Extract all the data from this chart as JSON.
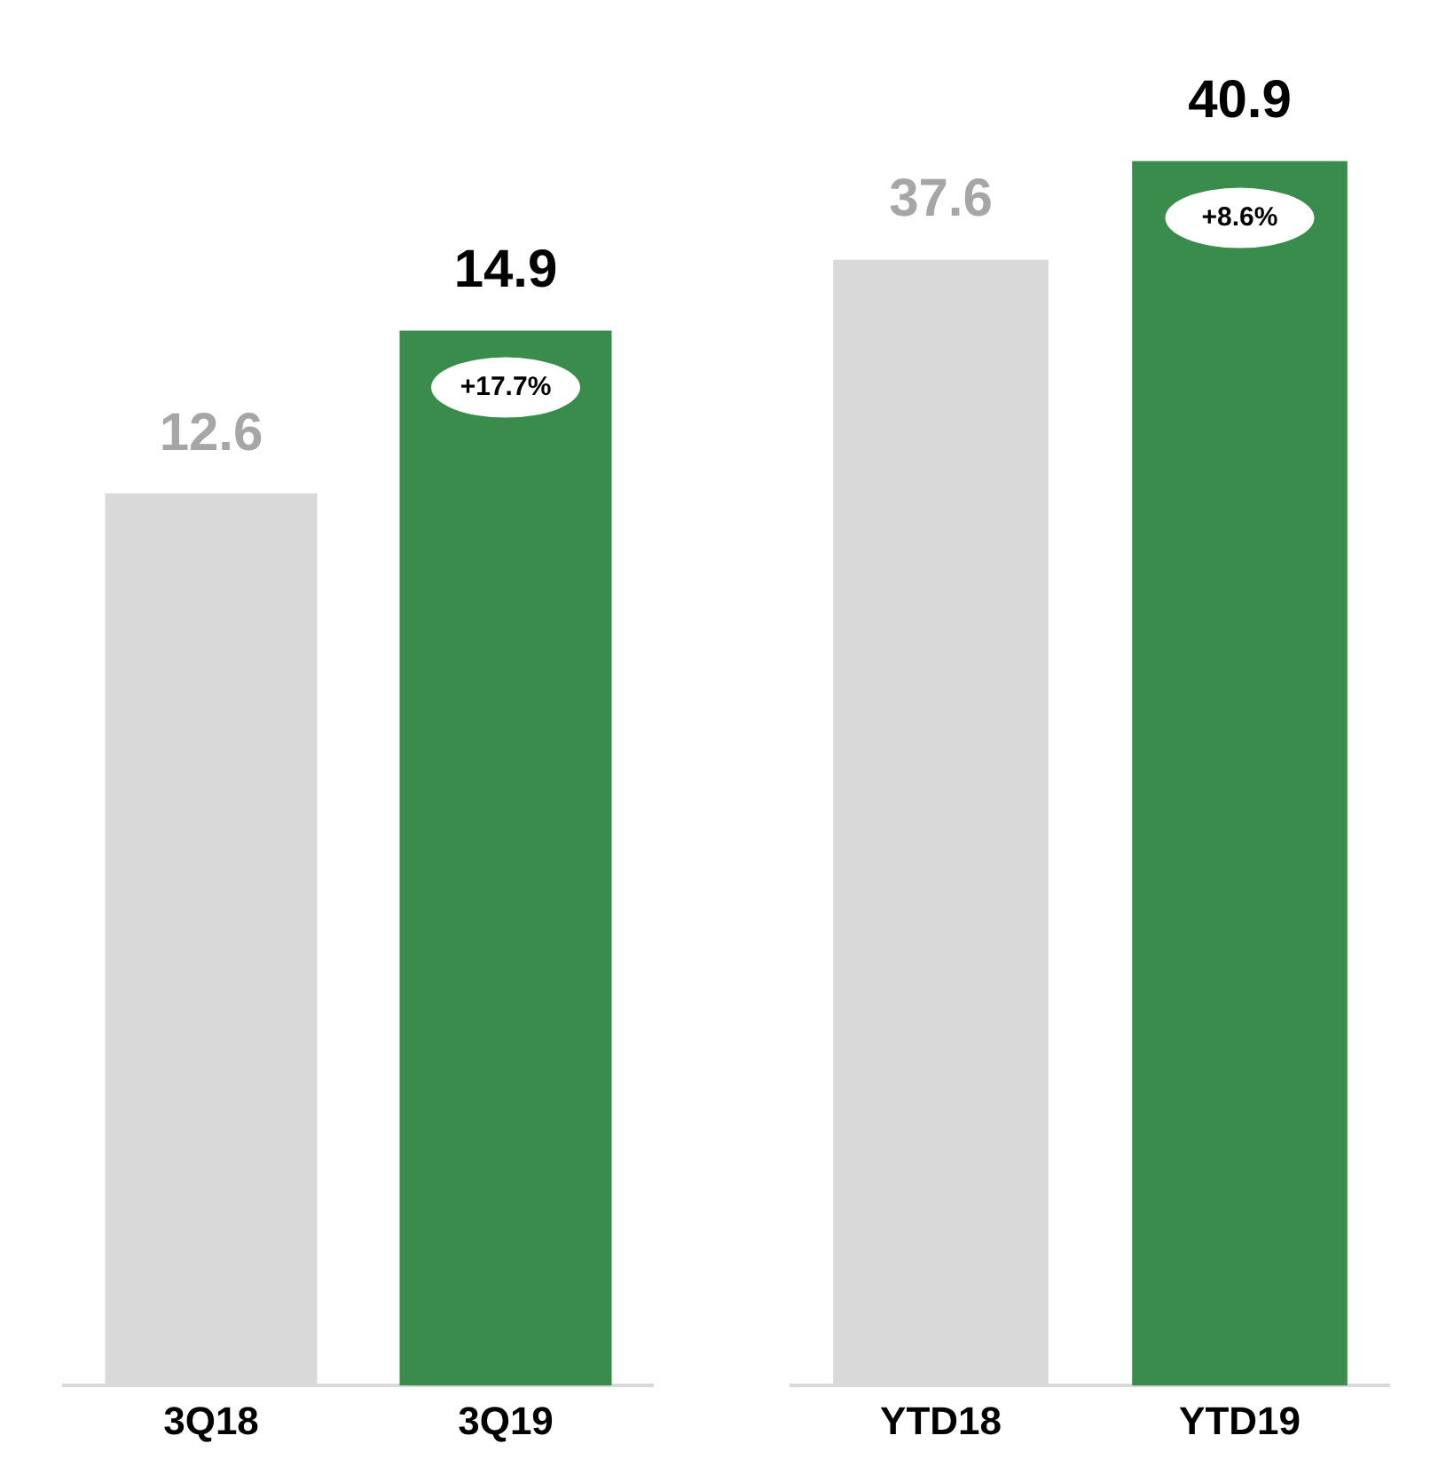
{
  "chart_data": [
    {
      "type": "bar",
      "categories": [
        "3Q18",
        "3Q19"
      ],
      "values": [
        12.6,
        14.9
      ],
      "colors": [
        "#d9d9d9",
        "#3a8c4c"
      ],
      "data_labels": true,
      "relative": false,
      "annotations": [
        {
          "text": "+17.7%",
          "x": "3Q19",
          "y": 14.9
        }
      ]
    },
    {
      "type": "bar",
      "categories": [
        "YTD18",
        "YTD19"
      ],
      "values": [
        37.6,
        40.9
      ],
      "colors": [
        "#d9d9d9",
        "#3a8c4c"
      ],
      "data_labels": true,
      "relative": false,
      "annotations": [
        {
          "text": "+8.6%",
          "x": "YTD19",
          "y": 40.9
        }
      ]
    }
  ]
}
